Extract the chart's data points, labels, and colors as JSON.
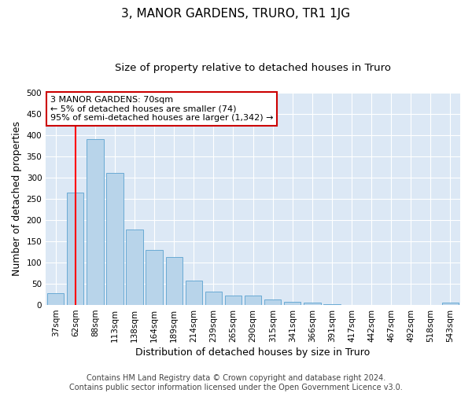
{
  "title": "3, MANOR GARDENS, TRURO, TR1 1JG",
  "subtitle": "Size of property relative to detached houses in Truro",
  "xlabel": "Distribution of detached houses by size in Truro",
  "ylabel": "Number of detached properties",
  "categories": [
    "37sqm",
    "62sqm",
    "88sqm",
    "113sqm",
    "138sqm",
    "164sqm",
    "189sqm",
    "214sqm",
    "239sqm",
    "265sqm",
    "290sqm",
    "315sqm",
    "341sqm",
    "366sqm",
    "391sqm",
    "417sqm",
    "442sqm",
    "467sqm",
    "492sqm",
    "518sqm",
    "543sqm"
  ],
  "values": [
    28,
    265,
    390,
    310,
    178,
    130,
    113,
    57,
    32,
    22,
    22,
    13,
    7,
    5,
    2,
    1,
    1,
    1,
    1,
    1,
    5
  ],
  "bar_color": "#b8d4ea",
  "bar_edge_color": "#6aaad4",
  "fig_background_color": "#ffffff",
  "plot_background_color": "#dce8f5",
  "grid_color": "#ffffff",
  "red_line_x": 1,
  "ylim": [
    0,
    500
  ],
  "yticks": [
    0,
    50,
    100,
    150,
    200,
    250,
    300,
    350,
    400,
    450,
    500
  ],
  "annotation_box_text": [
    "3 MANOR GARDENS: 70sqm",
    "← 5% of detached houses are smaller (74)",
    "95% of semi-detached houses are larger (1,342) →"
  ],
  "annotation_box_color": "#cc0000",
  "footer_line1": "Contains HM Land Registry data © Crown copyright and database right 2024.",
  "footer_line2": "Contains public sector information licensed under the Open Government Licence v3.0.",
  "title_fontsize": 11,
  "subtitle_fontsize": 9.5,
  "ylabel_fontsize": 9,
  "xlabel_fontsize": 9,
  "tick_fontsize": 7.5,
  "footer_fontsize": 7,
  "ann_fontsize": 8
}
